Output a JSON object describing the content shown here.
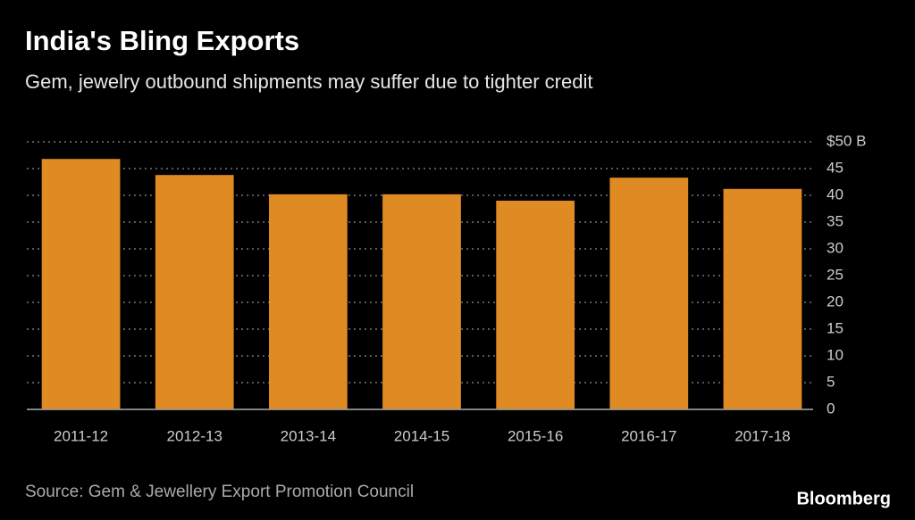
{
  "chart_data": {
    "type": "bar",
    "title": "India's Bling Exports",
    "subtitle": "Gem, jewelry outbound shipments may suffer due to tighter credit",
    "categories": [
      "2011-12",
      "2012-13",
      "2013-14",
      "2014-15",
      "2015-16",
      "2016-17",
      "2017-18"
    ],
    "values": [
      46.8,
      43.8,
      40.2,
      40.2,
      39.0,
      43.3,
      41.2
    ],
    "color": "#e08a24",
    "ylim": [
      0,
      50
    ],
    "yticks": [
      0,
      5,
      10,
      15,
      20,
      25,
      30,
      35,
      40,
      45,
      {
        "value": 50,
        "label": "$50 B"
      }
    ],
    "grid": true,
    "source": "Source: Gem & Jewellery Export Promotion Council",
    "brand": "Bloomberg"
  }
}
